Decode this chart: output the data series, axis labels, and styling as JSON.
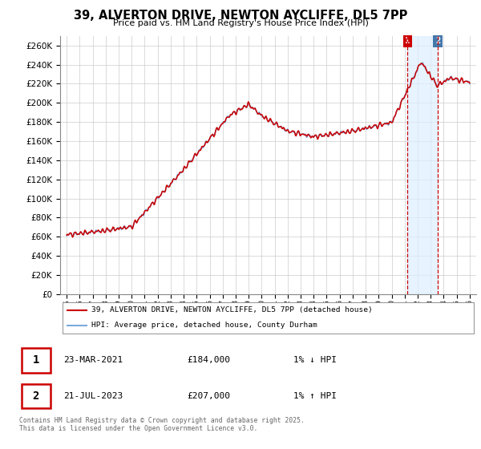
{
  "title": "39, ALVERTON DRIVE, NEWTON AYCLIFFE, DL5 7PP",
  "subtitle": "Price paid vs. HM Land Registry's House Price Index (HPI)",
  "ylim": [
    0,
    270000
  ],
  "ytick_vals": [
    0,
    20000,
    40000,
    60000,
    80000,
    100000,
    120000,
    140000,
    160000,
    180000,
    200000,
    220000,
    240000,
    260000
  ],
  "legend_line1": "39, ALVERTON DRIVE, NEWTON AYCLIFFE, DL5 7PP (detached house)",
  "legend_line2": "HPI: Average price, detached house, County Durham",
  "annotation1_date": "23-MAR-2021",
  "annotation1_price": "£184,000",
  "annotation1_hpi": "1% ↓ HPI",
  "annotation2_date": "21-JUL-2023",
  "annotation2_price": "£207,000",
  "annotation2_hpi": "1% ↑ HPI",
  "footer": "Contains HM Land Registry data © Crown copyright and database right 2025.\nThis data is licensed under the Open Government Licence v3.0.",
  "line_color_red": "#cc0000",
  "line_color_blue": "#7aaadd",
  "annotation_box_red": "#cc0000",
  "annotation_box_blue": "#4477aa",
  "shaded_region_color": "#ddeeff",
  "grid_color": "#cccccc",
  "point1_x": 2021.22,
  "point1_y": 184000,
  "point2_x": 2023.55,
  "point2_y": 207000,
  "xlim_min": 1994.5,
  "xlim_max": 2026.5,
  "xtick_start": 1995,
  "xtick_end": 2027
}
